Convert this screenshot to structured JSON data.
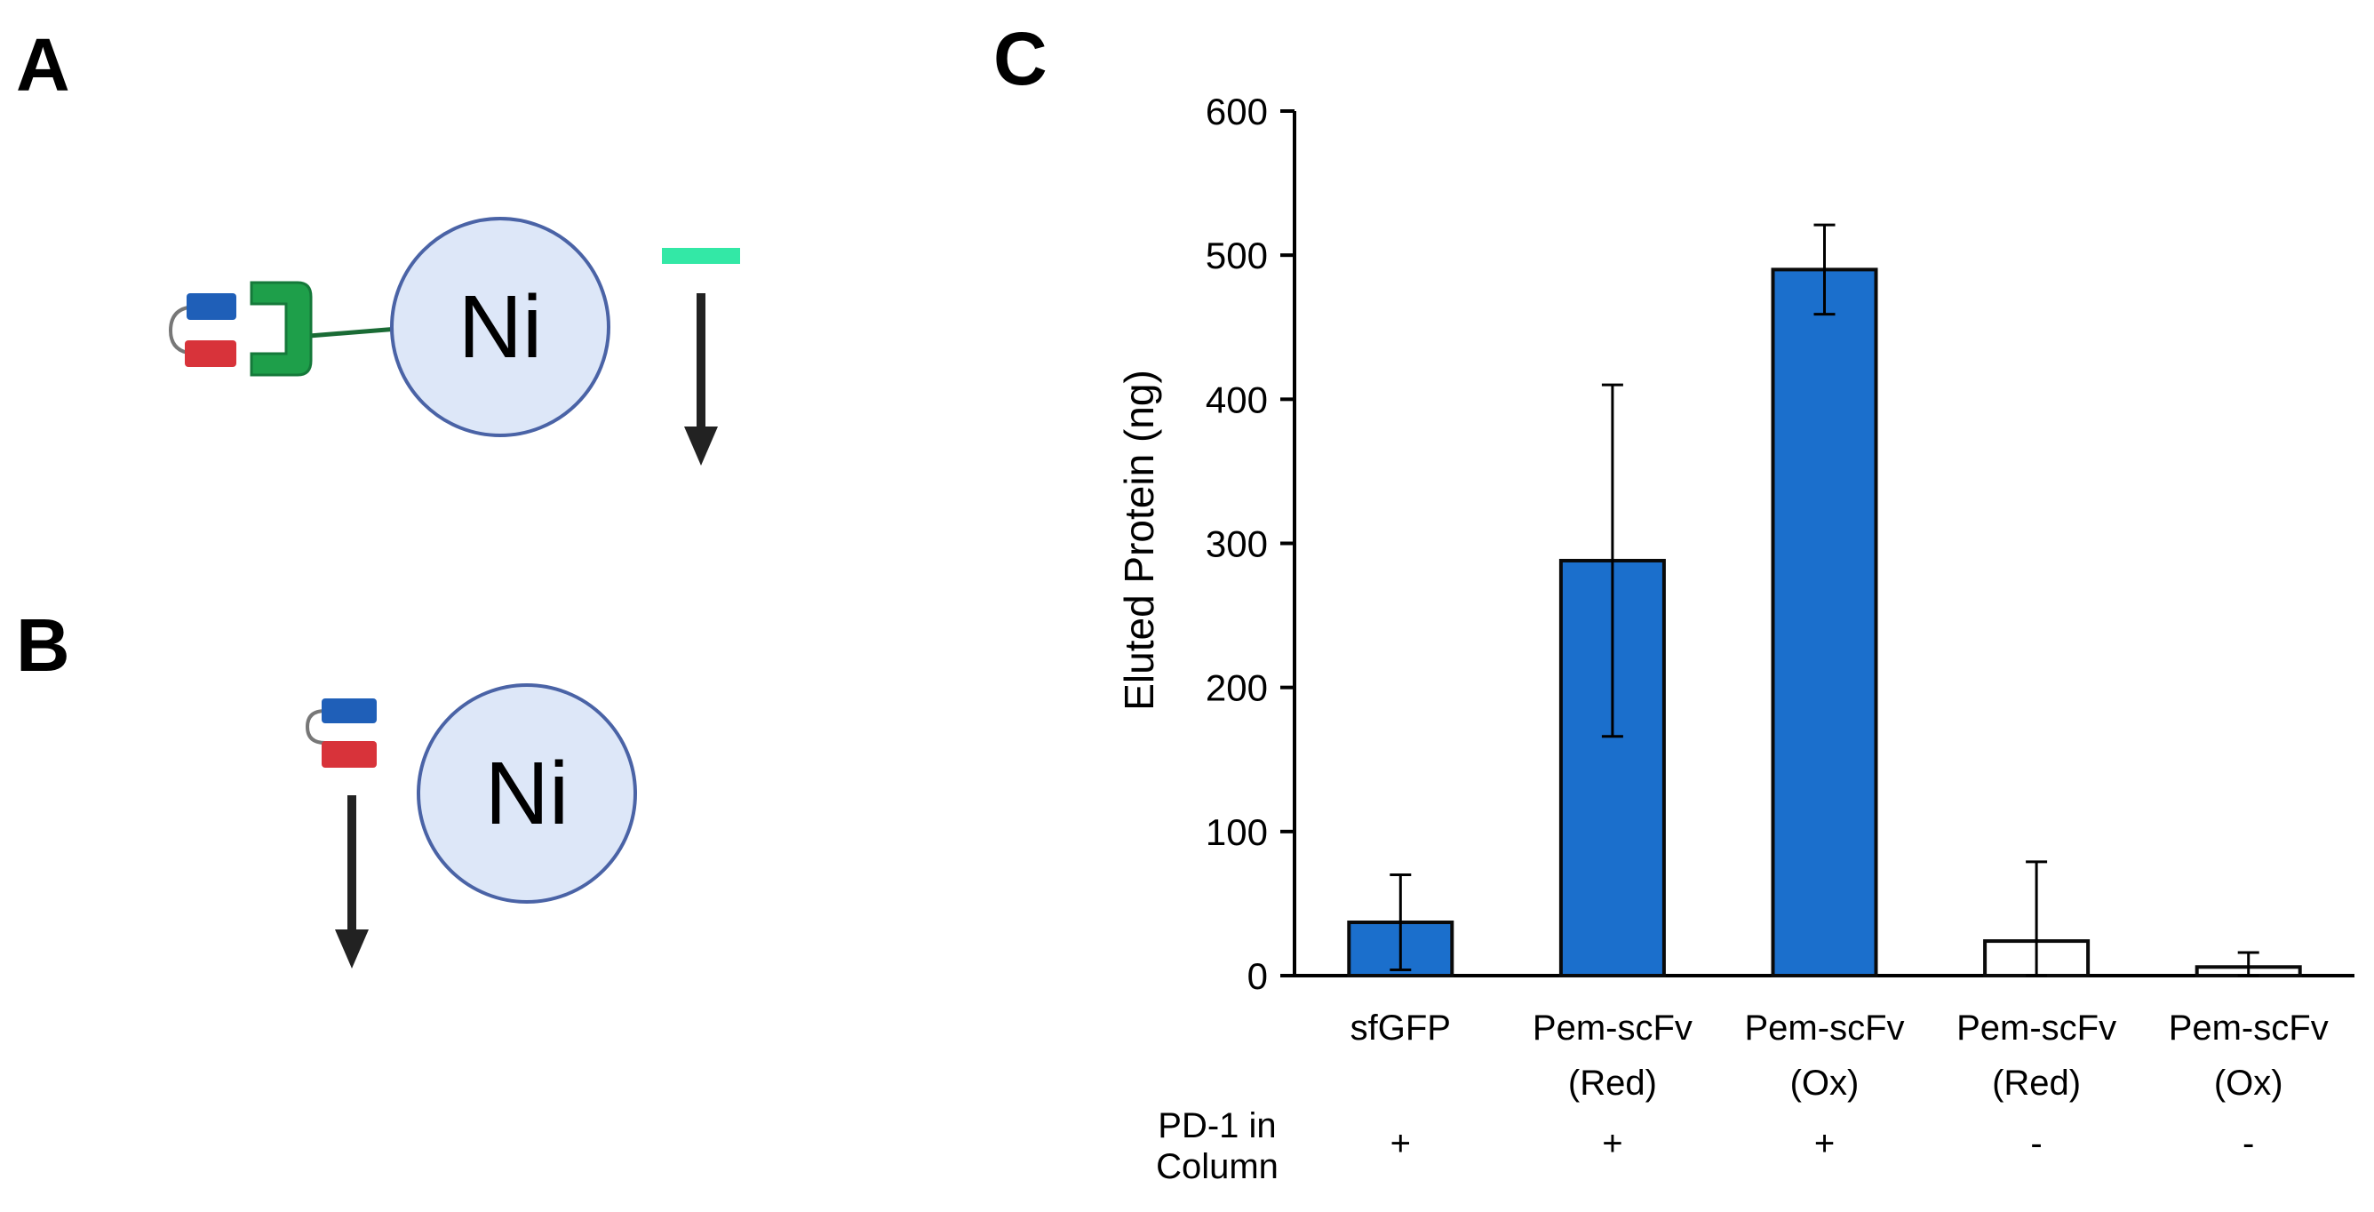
{
  "panels": {
    "a": "A",
    "b": "B",
    "c": "C"
  },
  "diagram": {
    "bead_label_a": "Ni",
    "bead_label_b": "Ni"
  },
  "colors": {
    "bar_fill": "#1b6fcc",
    "bar_outline": "#0a0a0a",
    "open_bar_fill": "#ffffff",
    "bead_fill": "#dde7f8",
    "bead_stroke": "#4a63a6",
    "receptor": "#1e9f4a",
    "ligand_green": "#33e8a6",
    "domain_blue": "#1f5fb8",
    "domain_red": "#d8333a"
  },
  "chart_data": {
    "type": "bar",
    "ylabel": "Eluted Protein (ng)",
    "ylim": [
      0,
      600
    ],
    "yticks": [
      "0",
      "100",
      "200",
      "300",
      "400",
      "500",
      "600"
    ],
    "categories": [
      {
        "line1": "sfGFP",
        "line2": ""
      },
      {
        "line1": "Pem-scFv",
        "line2": "(Red)"
      },
      {
        "line1": "Pem-scFv",
        "line2": "(Ox)"
      },
      {
        "line1": "Pem-scFv",
        "line2": "(Red)"
      },
      {
        "line1": "Pem-scFv",
        "line2": "(Ox)"
      }
    ],
    "values": [
      37,
      288,
      490,
      24,
      6
    ],
    "errors": [
      33,
      122,
      31,
      55,
      10
    ],
    "filled": [
      true,
      true,
      true,
      false,
      false
    ],
    "pd1_row": {
      "label_line1": "PD-1 in",
      "label_line2": "Column",
      "marks": [
        "+",
        "+",
        "+",
        "-",
        "-"
      ]
    }
  }
}
